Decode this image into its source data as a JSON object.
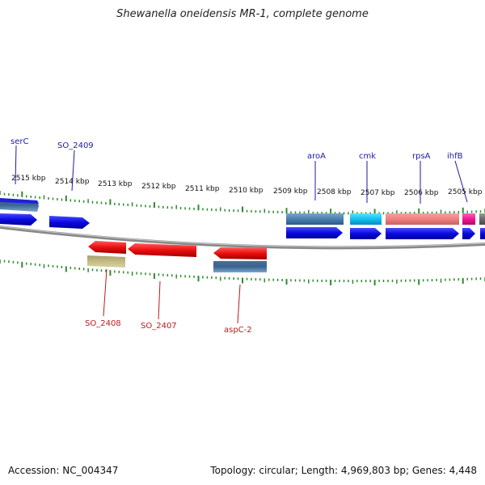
{
  "title": "Shewanella oneidensis MR-1, complete genome",
  "footer": {
    "accession": "Accession: NC_004347",
    "summary": "Topology: circular; Length: 4,969,803 bp; Genes: 4,448"
  },
  "colors": {
    "tick": "#2e8b2e",
    "backbone": "#8a8a8a",
    "forward_gene": "#1010e0",
    "reverse_gene": "#e01010",
    "forward_label": "#1a1aa8",
    "reverse_label": "#c01818"
  },
  "kbp_labels": [
    "2515 kbp",
    "2514 kbp",
    "2513 kbp",
    "2512 kbp",
    "2511 kbp",
    "2510 kbp",
    "2509 kbp",
    "2508 kbp",
    "2507 kbp",
    "2506 kbp",
    "2505 kbp"
  ],
  "gene_labels": {
    "serC": "serC",
    "SO_2409": "SO_2409",
    "aroA": "aroA",
    "cmk": "cmk",
    "rpsA": "rpsA",
    "ihfB": "ihfB",
    "SO_2408": "SO_2408",
    "SO_2407": "SO_2407",
    "aspC_2": "aspC-2"
  }
}
